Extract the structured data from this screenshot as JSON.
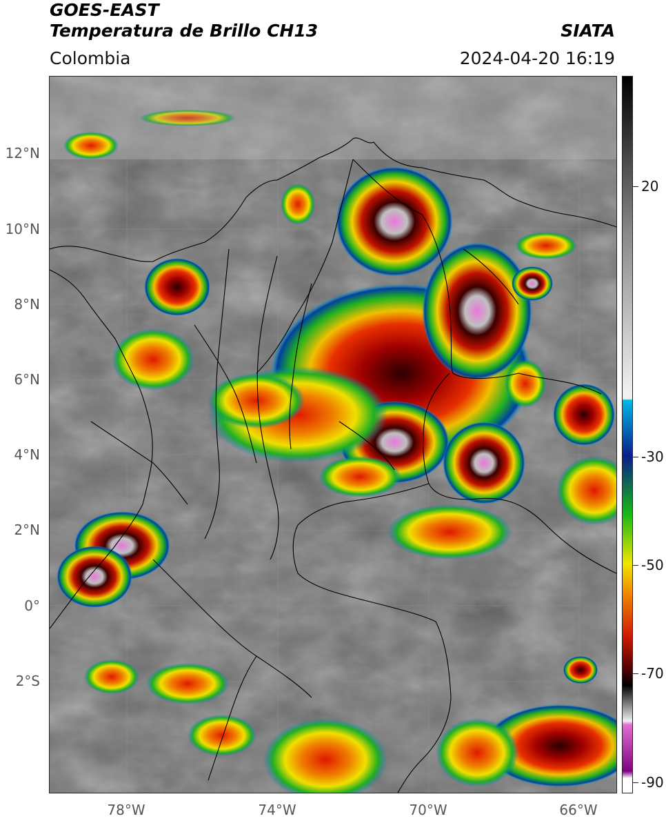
{
  "header": {
    "satellite": "GOES-EAST",
    "product": "Temperatura de Brillo CH13",
    "brand": "SIATA",
    "region": "Colombia",
    "timestamp": "2024-04-20 16:19"
  },
  "map": {
    "lat_labels": [
      "12°N",
      "10°N",
      "8°N",
      "6°N",
      "4°N",
      "2°N",
      "0°",
      "2°S"
    ],
    "lon_labels": [
      "78°W",
      "74°W",
      "70°W",
      "66°W"
    ]
  },
  "colorbar": {
    "labels": [
      "20",
      "-30",
      "-50",
      "-70",
      "-90"
    ],
    "colors": {
      "warm": "#000000",
      "gray_mid": "#8a8a8a",
      "white": "#f0f0f0",
      "cyan": "#00b8e6",
      "blue": "#0a1e8c",
      "green": "#15b815",
      "yellow": "#f0e600",
      "orange": "#f08c00",
      "red": "#d21a00",
      "dark_red": "#4a0000",
      "pink": "#e070d0",
      "purple": "#800080"
    }
  }
}
